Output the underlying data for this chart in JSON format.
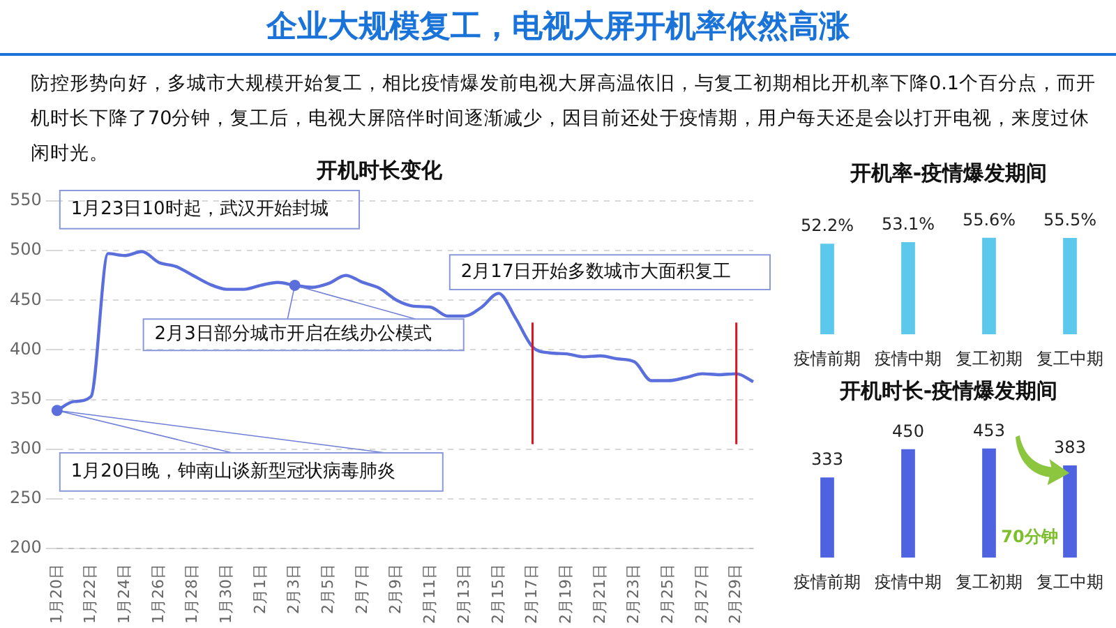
{
  "chart_data": [
    {
      "type": "other",
      "title": "企业大规模复工，电视大屏开机率依然高涨",
      "subtitle": "防控形势向好，多城市大规模开始复工，相比疫情爆发前电视大屏高温依旧，与复工初期相比开机率下降0.1个百分点，而开机时长下降了70分钟，复工后，电视大屏陪伴时间逐渐减少，因目前还处于疫情期，用户每天还是会以打开电视，来度过休闲时光。"
    },
    {
      "type": "line",
      "title": "开机时长变化",
      "categories": [
        "1月20日",
        null,
        "1月22日",
        null,
        "1月24日",
        null,
        "1月26日",
        null,
        "1月28日",
        null,
        "1月30日",
        null,
        "2月1日",
        null,
        "2月3日",
        null,
        "2月5日",
        null,
        "2月7日",
        null,
        "2月9日",
        null,
        "2月11日",
        null,
        "2月13日",
        null,
        "2月15日",
        null,
        "2月17日",
        null,
        "2月19日",
        null,
        "2月21日",
        null,
        "2月23日",
        null,
        "2月25日",
        null,
        "2月27日",
        null,
        "2月29日",
        null
      ],
      "series": [
        {
          "color": "#5b6fdc",
          "values": [
            339,
            348,
            353,
            497,
            495,
            499,
            488,
            484,
            475,
            466,
            461,
            461,
            465,
            468,
            465,
            463,
            467,
            475,
            468,
            462,
            450,
            444,
            443,
            434,
            434,
            443,
            457,
            432,
            403,
            397,
            396,
            393,
            394,
            391,
            388,
            369,
            369,
            372,
            376,
            375,
            376,
            368
          ]
        }
      ],
      "ylim": [
        200,
        550
      ],
      "yticks": [
        200,
        250,
        300,
        350,
        400,
        450,
        500,
        550
      ],
      "grid": "y",
      "legend": false,
      "marker": "none",
      "line_style": "solid",
      "ref_lines": [
        {
          "axis": "x",
          "value": "2月17日",
          "color": "#e0141e"
        },
        {
          "axis": "x",
          "value": "2月29日",
          "color": "#e0141e"
        }
      ],
      "annotations": [
        {
          "text": "1月20日晚，钟南山谈新型冠状病毒肺炎",
          "x": "1月20日",
          "y": 339
        },
        "1月23日10时起，武汉开始封城",
        {
          "text": "2月3日部分城市开启在线办公模式",
          "x": "2月3日",
          "y": 465
        },
        "2月17日开始多数城市大面积复工"
      ]
    },
    {
      "type": "bar",
      "title": "开机率-疫情爆发期间",
      "categories": [
        "疫情前期",
        "疫情中期",
        "复工初期",
        "复工中期"
      ],
      "values": [
        52.2,
        53.1,
        55.6,
        55.5
      ],
      "value_labels": [
        "52.2%",
        "53.1%",
        "55.6%",
        "55.5%"
      ],
      "color": "#5bc8ec",
      "legend": false
    },
    {
      "type": "bar",
      "title": "开机时长-疫情爆发期间",
      "categories": [
        "疫情前期",
        "疫情中期",
        "复工初期",
        "复工中期"
      ],
      "values": [
        333,
        450,
        453,
        383
      ],
      "data_labels": true,
      "color": "#4f63e0",
      "legend": false,
      "annotations": [
        "70分钟"
      ]
    }
  ]
}
